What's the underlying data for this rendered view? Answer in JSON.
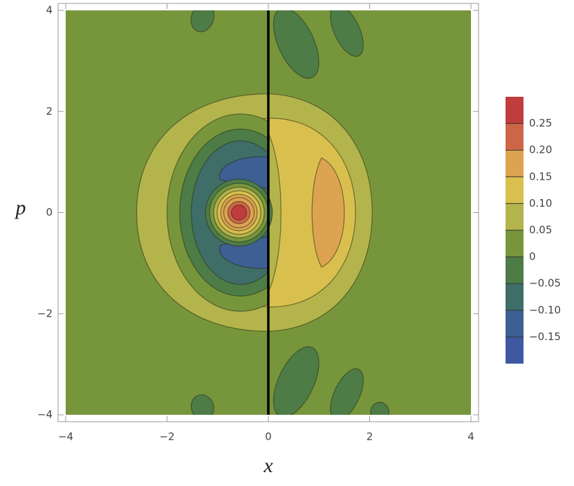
{
  "chart_data": {
    "type": "contour",
    "xlabel": "x",
    "ylabel": "p",
    "xlim": [
      -4,
      4
    ],
    "ylim": [
      -4,
      4
    ],
    "xticks": [
      {
        "value": -4,
        "label": "−4"
      },
      {
        "value": -2,
        "label": "−2"
      },
      0,
      2,
      4
    ],
    "yticks": [
      {
        "value": -4,
        "label": "−4"
      },
      {
        "value": -2,
        "label": "−2"
      },
      0,
      2,
      4
    ],
    "vline_x": 0,
    "vline_color": "#000000",
    "colorbar": {
      "lim": [
        -0.2,
        0.3
      ],
      "ticks": [
        {
          "value": -0.15,
          "label": "−0.15"
        },
        {
          "value": -0.1,
          "label": "−0.10"
        },
        {
          "value": -0.05,
          "label": "−0.05"
        },
        0,
        0.05,
        {
          "value": 0.1,
          "label": "0.10"
        },
        0.15,
        {
          "value": 0.2,
          "label": "0.20"
        },
        0.25
      ],
      "colors": [
        "#3f58a2",
        "#3e5f93",
        "#3f6e68",
        "#4d7c47",
        "#77963c",
        "#b3b44c",
        "#d9c04e",
        "#dca350",
        "#cd6648",
        "#c13c3c"
      ]
    }
  }
}
